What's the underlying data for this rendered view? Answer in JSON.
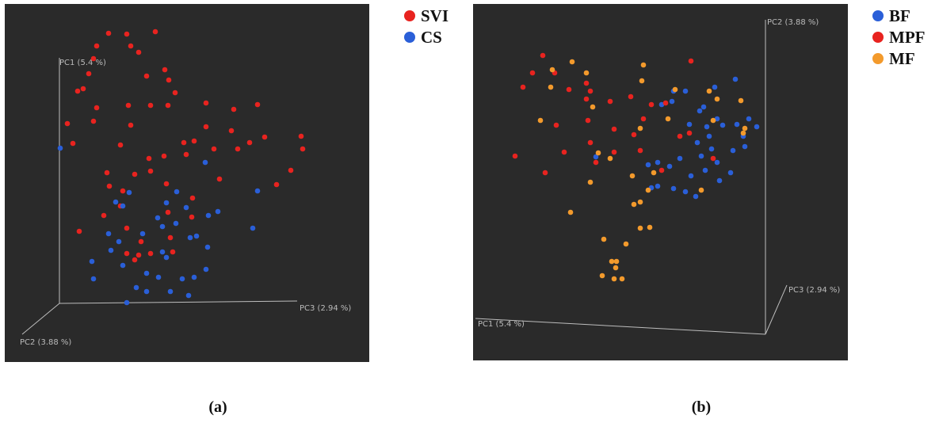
{
  "chart_data": [
    {
      "type": "scatter3d",
      "caption": "(a)",
      "axis_labels": [
        "PC1 (5.4 %)",
        "PC2 (3.88 %)",
        "PC3 (2.94 %)"
      ],
      "xlim": [
        0,
        460
      ],
      "ylim": [
        0,
        452
      ],
      "series": [
        {
          "name": "SVI",
          "color": "#e8231f",
          "x": [
            131,
            154,
            190,
            116,
            159,
            169,
            112,
            106,
            179,
            202,
            207,
            92,
            99,
            215,
            116,
            156,
            184,
            206,
            254,
            289,
            319,
            79,
            112,
            159,
            254,
            286,
            328,
            374,
            86,
            146,
            226,
            239,
            264,
            294,
            309,
            376,
            182,
            201,
            229,
            361,
            129,
            164,
            184,
            204,
            271,
            343,
            132,
            149,
            125,
            146,
            237,
            94,
            154,
            206,
            236,
            172,
            209,
            154,
            164,
            184,
            212,
            169
          ],
          "y": [
            415,
            414,
            417,
            399,
            399,
            391,
            383,
            364,
            361,
            369,
            356,
            342,
            345,
            340,
            321,
            324,
            324,
            324,
            327,
            319,
            325,
            301,
            304,
            299,
            297,
            292,
            284,
            285,
            276,
            274,
            277,
            279,
            269,
            269,
            277,
            269,
            257,
            260,
            262,
            242,
            239,
            237,
            241,
            225,
            231,
            224,
            222,
            216,
            185,
            197,
            207,
            165,
            169,
            189,
            183,
            152,
            157,
            137,
            129,
            137,
            139,
            135
          ]
        },
        {
          "name": "CS",
          "color": "#2a5fd8",
          "x": [
            70,
            253,
            217,
            319,
            140,
            149,
            157,
            204,
            229,
            257,
            269,
            193,
            199,
            174,
            131,
            216,
            234,
            242,
            110,
            134,
            144,
            199,
            204,
            256,
            313,
            112,
            149,
            179,
            194,
            224,
            239,
            254,
            166,
            209,
            232,
            154,
            179
          ],
          "y": [
            270,
            252,
            215,
            216,
            202,
            197,
            214,
            201,
            195,
            185,
            190,
            182,
            171,
            162,
            162,
            175,
            157,
            159,
            127,
            141,
            152,
            139,
            132,
            145,
            169,
            105,
            122,
            112,
            107,
            105,
            107,
            117,
            94,
            89,
            84,
            75,
            89
          ]
        }
      ]
    },
    {
      "type": "scatter3d",
      "caption": "(b)",
      "axis_labels": [
        "PC2 (3.88 %)",
        "PC3 (2.94 %)",
        "PC1 (5.4 %)"
      ],
      "xlim": [
        0,
        473
      ],
      "ylim": [
        0,
        450
      ],
      "series": [
        {
          "name": "BF",
          "color": "#2a5fd8",
          "x": [
            331,
            305,
            268,
            253,
            238,
            251,
            291,
            286,
            308,
            273,
            295,
            315,
            333,
            348,
            358,
            341,
            298,
            283,
            301,
            328,
            343,
            261,
            288,
            308,
            325,
            311,
            233,
            248,
            275,
            253,
            268,
            281,
            233,
            221,
            155,
            225,
            293
          ],
          "y": [
            355,
            345,
            340,
            340,
            323,
            327,
            320,
            315,
            305,
            298,
            295,
            297,
            298,
            305,
            295,
            283,
            283,
            275,
            267,
            265,
            270,
            255,
            258,
            250,
            237,
            227,
            250,
            245,
            233,
            217,
            213,
            207,
            220,
            247,
            257,
            218,
            240
          ]
        },
        {
          "name": "MPF",
          "color": "#e8231f",
          "x": [
            88,
            275,
            75,
            103,
            63,
            121,
            143,
            148,
            199,
            173,
            143,
            225,
            243,
            145,
            215,
            105,
            178,
            273,
            203,
            261,
            148,
            115,
            178,
            53,
            155,
            211,
            91,
            238,
            303
          ],
          "y": [
            385,
            378,
            363,
            363,
            345,
            342,
            350,
            340,
            333,
            327,
            330,
            323,
            325,
            303,
            305,
            297,
            292,
            287,
            285,
            283,
            275,
            263,
            263,
            258,
            250,
            265,
            237,
            240,
            255
          ]
        },
        {
          "name": "MF",
          "color": "#f39a2c",
          "x": [
            125,
            215,
            100,
            143,
            213,
            98,
            255,
            298,
            338,
            151,
            246,
            308,
            85,
            211,
            303,
            343,
            341,
            158,
            173,
            201,
            228,
            221,
            148,
            211,
            203,
            288,
            123,
            223,
            211,
            165,
            193,
            175,
            181,
            180,
            163,
            178,
            188
          ],
          "y": [
            377,
            373,
            367,
            363,
            353,
            345,
            342,
            340,
            328,
            320,
            305,
            330,
            303,
            293,
            303,
            293,
            287,
            262,
            255,
            233,
            237,
            215,
            225,
            200,
            197,
            215,
            187,
            168,
            167,
            153,
            147,
            125,
            125,
            117,
            107,
            103,
            103
          ]
        }
      ]
    }
  ]
}
